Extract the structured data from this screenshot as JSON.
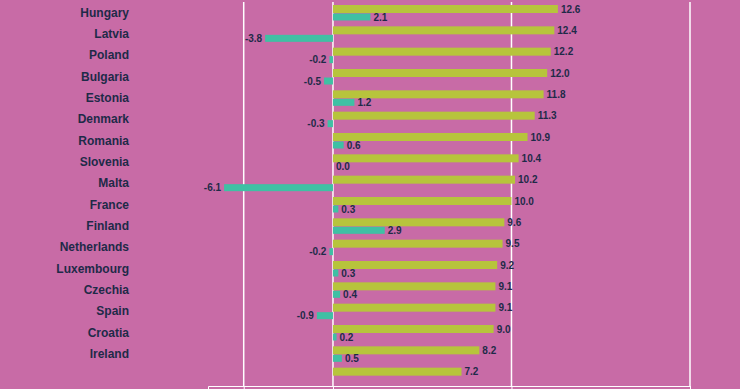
{
  "chart_data": {
    "type": "bar",
    "orientation": "horizontal",
    "categories": [
      "Hungary",
      "Latvia",
      "Poland",
      "Bulgaria",
      "Estonia",
      "Denmark",
      "Romania",
      "Slovenia",
      "Malta",
      "France",
      "Finland",
      "Netherlands",
      "Luxembourg",
      "Czechia",
      "Spain",
      "Croatia",
      "Ireland",
      null
    ],
    "series": [
      {
        "color": "#b7c43c",
        "values": [
          12.6,
          12.4,
          12.2,
          12.0,
          11.8,
          11.3,
          10.9,
          10.4,
          10.2,
          10.0,
          9.6,
          9.5,
          9.2,
          9.1,
          9.1,
          9.0,
          8.2,
          7.2
        ],
        "value_labels": [
          "12.6",
          "12.4",
          "12.2",
          "12.0",
          "11.8",
          "11.3",
          "10.9",
          "10.4",
          "10.2",
          "10.0",
          "9.6",
          "9.5",
          "9.2",
          "9.1",
          "9.1",
          "9.0",
          "8.2",
          "7.2"
        ]
      },
      {
        "color": "#3fc0a4",
        "values": [
          2.1,
          -3.8,
          -0.2,
          -0.5,
          1.2,
          -0.3,
          0.6,
          0.0,
          -6.1,
          0.3,
          2.9,
          -0.2,
          0.3,
          0.4,
          -0.9,
          0.2,
          0.5,
          null
        ],
        "value_labels": [
          "2.1",
          "-3.8",
          "-0.2",
          "-0.5",
          "1.2",
          "-0.3",
          "0.6",
          "0.0",
          "-6.1",
          "0.3",
          "2.9",
          "-0.2",
          "0.3",
          "0.4",
          "-0.9",
          "0.2",
          "0.5",
          null
        ]
      }
    ],
    "xlim": [
      -7,
      20
    ],
    "xticks": [
      -5,
      0,
      10,
      20
    ],
    "grid": true,
    "data_labels": true,
    "tick_labels": false
  }
}
